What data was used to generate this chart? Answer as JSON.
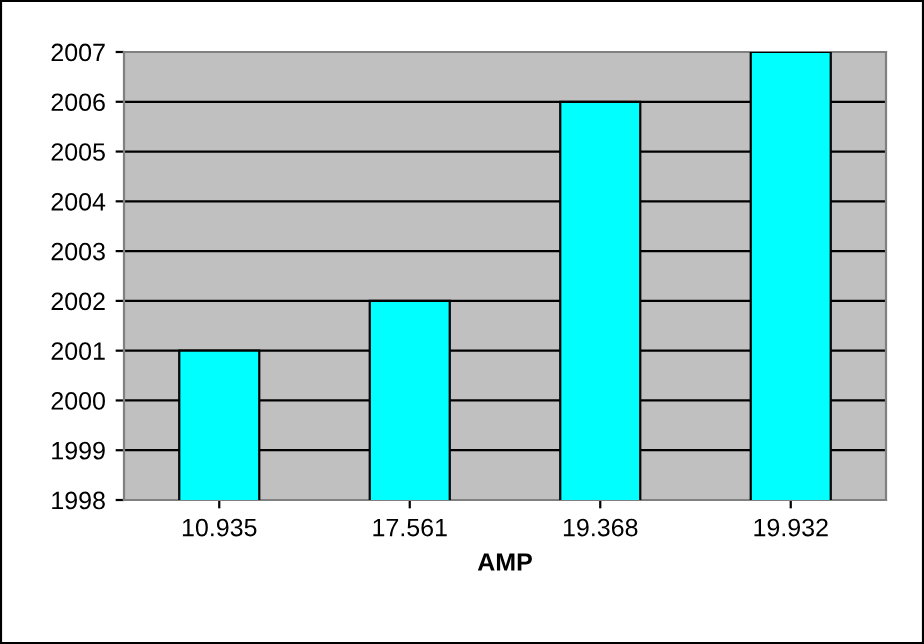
{
  "chart_data": {
    "type": "bar",
    "xlabel": "AMP",
    "categories": [
      "10.935",
      "17.561",
      "19.368",
      "19.932"
    ],
    "values": [
      2001,
      2002,
      2006,
      2007
    ],
    "color": "#00ffff",
    "ylim": [
      1998,
      2007
    ],
    "yticks": [
      1998,
      1999,
      2000,
      2001,
      2002,
      2003,
      2004,
      2005,
      2006,
      2007
    ],
    "grid": "y"
  }
}
